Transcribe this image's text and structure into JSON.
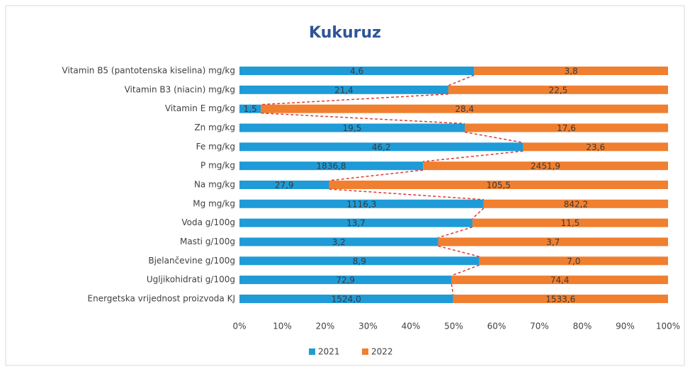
{
  "chart_data": {
    "type": "bar",
    "orientation": "horizontal",
    "stacked": "percent",
    "title": "Kukuruz",
    "categories": [
      "Vitamin B5 (pantotenska kiselina) mg/kg",
      "Vitamin B3 (niacin) mg/kg",
      "Vitamin E mg/kg",
      "Zn mg/kg",
      "Fe mg/kg",
      "P mg/kg",
      "Na mg/kg",
      "Mg mg/kg",
      "Voda g/100g",
      "Masti g/100g",
      "Bjelančevine g/100g",
      "Ugljikohidrati g/100g",
      "Energetska vrijednost proizvoda KJ"
    ],
    "series": [
      {
        "name": "2021",
        "color": "#1f9bd7",
        "values": [
          4.6,
          21.4,
          1.5,
          19.5,
          46.2,
          1836.8,
          27.9,
          1116.3,
          13.7,
          3.2,
          8.9,
          72.9,
          1524.0
        ],
        "value_labels": [
          "4,6",
          "21,4",
          "1,5",
          "19,5",
          "46,2",
          "1836,8",
          "27,9",
          "1116,3",
          "13,7",
          "3,2",
          "8,9",
          "72,9",
          "1524,0"
        ]
      },
      {
        "name": "2022",
        "color": "#f07f2f",
        "values": [
          3.8,
          22.5,
          28.4,
          17.6,
          23.6,
          2451.9,
          105.5,
          842.2,
          11.5,
          3.7,
          7.0,
          74.4,
          1533.6
        ],
        "value_labels": [
          "3,8",
          "22,5",
          "28,4",
          "17,6",
          "23,6",
          "2451,9",
          "105,5",
          "842,2",
          "11,5",
          "3,7",
          "7,0",
          "74,4",
          "1533,6"
        ]
      }
    ],
    "xlim": [
      0,
      100
    ],
    "xticks": [
      {
        "value": 0,
        "label": "0%"
      },
      {
        "value": 10,
        "label": "10%"
      },
      {
        "value": 20,
        "label": "20%"
      },
      {
        "value": 30,
        "label": "30%"
      },
      {
        "value": 40,
        "label": "40%"
      },
      {
        "value": 50,
        "label": "50%"
      },
      {
        "value": 60,
        "label": "60%"
      },
      {
        "value": 70,
        "label": "70%"
      },
      {
        "value": 80,
        "label": "80%"
      },
      {
        "value": 90,
        "label": "90%"
      },
      {
        "value": 100,
        "label": "100%"
      }
    ],
    "series_lines": {
      "color": "#e03a2f",
      "dashed": true
    },
    "grid": false,
    "legend": "bottom"
  }
}
